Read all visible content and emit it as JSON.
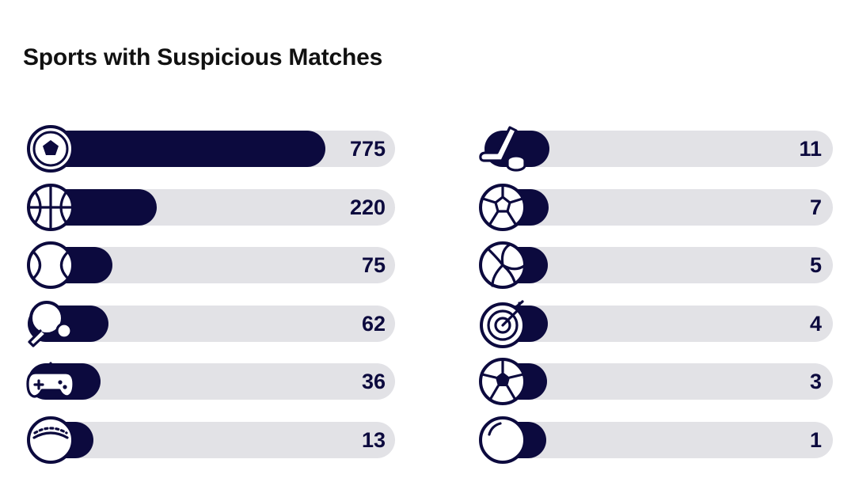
{
  "title": "Sports with Suspicious Matches",
  "colors": {
    "bar": "#0c0a3e",
    "track": "#e2e2e6",
    "text": "#0c0a3e"
  },
  "chart_data": {
    "type": "bar",
    "title": "Sports with Suspicious Matches",
    "orientation": "horizontal",
    "grid": false,
    "legend": "none",
    "xlim": [
      0,
      775
    ],
    "categories": [
      "soccer-ball-icon",
      "basketball-icon",
      "tennis-ball-icon",
      "table-tennis-icon",
      "gamepad-icon",
      "cricket-ball-icon",
      "ice-hockey-icon",
      "handball-icon",
      "volleyball-icon",
      "darts-icon",
      "futsal-icon",
      "snooker-icon"
    ],
    "values": [
      775,
      220,
      75,
      62,
      36,
      13,
      11,
      7,
      5,
      4,
      3,
      1
    ],
    "value_labels": [
      "775",
      "220",
      "75",
      "62",
      "36",
      "13",
      "11",
      "7",
      "5",
      "4",
      "3",
      "1"
    ]
  }
}
